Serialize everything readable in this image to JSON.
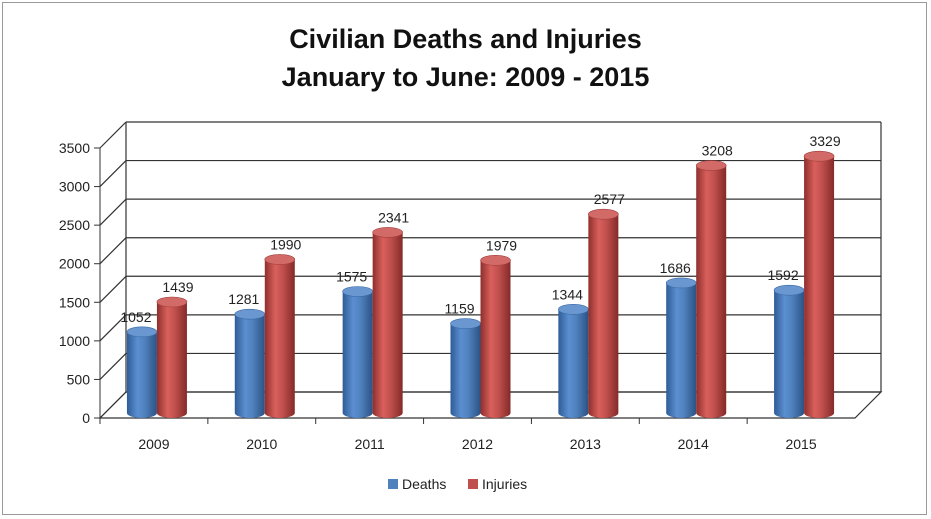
{
  "chart_data": {
    "type": "bar",
    "title_line1": "Civilian Deaths and Injuries",
    "title_line2": "January to June: 2009 - 2015",
    "categories": [
      "2009",
      "2010",
      "2011",
      "2012",
      "2013",
      "2014",
      "2015"
    ],
    "series": [
      {
        "name": "Deaths",
        "values": [
          1052,
          1281,
          1575,
          1159,
          1344,
          1686,
          1592
        ],
        "color": "#4f81bd"
      },
      {
        "name": "Injuries",
        "values": [
          1439,
          1990,
          2341,
          1979,
          2577,
          3208,
          3329
        ],
        "color": "#c0504d"
      }
    ],
    "ylim": [
      0,
      3500
    ],
    "yticks": [
      "0",
      "500",
      "1000",
      "1500",
      "2000",
      "2500",
      "3000",
      "3500"
    ],
    "grid": true,
    "legend_position": "bottom",
    "style": "3d-cylinder"
  }
}
